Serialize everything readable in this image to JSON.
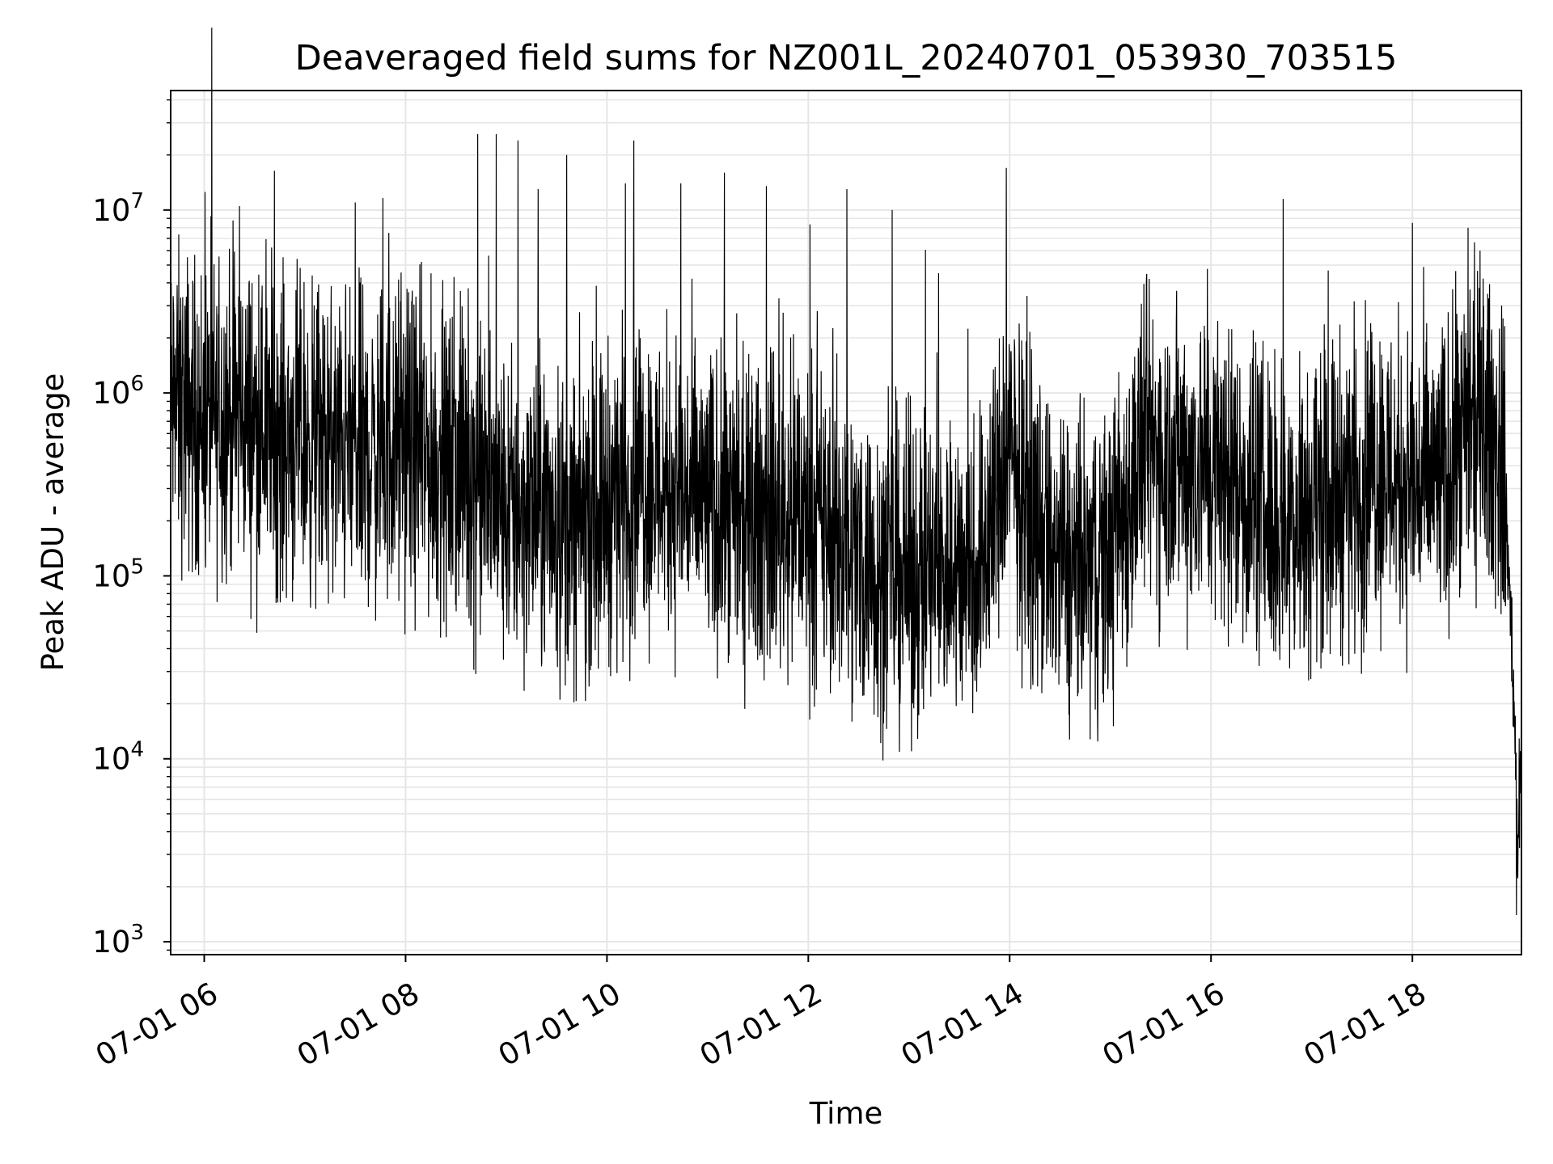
{
  "chart_data": {
    "type": "line",
    "title": "Deaveraged field sums for NZ001L_20240701_053930_703515",
    "xlabel": "Time",
    "ylabel": "Peak ADU - average",
    "xlim": [
      "2024-07-01 05:40",
      "2024-07-01 19:05"
    ],
    "ylim": [
      850,
      45000000
    ],
    "yscale": "log",
    "grid": true,
    "xticks": [
      "07-01 06",
      "07-01 08",
      "07-01 10",
      "07-01 12",
      "07-01 14",
      "07-01 16",
      "07-01 18"
    ],
    "yticks": [
      {
        "base": "10",
        "exp": "3"
      },
      {
        "base": "10",
        "exp": "4"
      },
      {
        "base": "10",
        "exp": "5"
      },
      {
        "base": "10",
        "exp": "6"
      },
      {
        "base": "10",
        "exp": "7"
      }
    ],
    "series_color": "#000000",
    "points": [
      [
        "2024-07-01 05:40",
        900000
      ],
      [
        "2024-07-01 06:00",
        700000
      ],
      [
        "2024-07-01 06:20",
        800000
      ],
      [
        "2024-07-01 06:40",
        600000
      ],
      [
        "2024-07-01 07:00",
        550000
      ],
      [
        "2024-07-01 07:20",
        500000
      ],
      [
        "2024-07-01 07:40",
        450000
      ],
      [
        "2024-07-01 08:00",
        550000
      ],
      [
        "2024-07-01 08:20",
        400000
      ],
      [
        "2024-07-01 08:40",
        350000
      ],
      [
        "2024-07-01 09:00",
        220000
      ],
      [
        "2024-07-01 09:20",
        230000
      ],
      [
        "2024-07-01 09:40",
        180000
      ],
      [
        "2024-07-01 10:00",
        250000
      ],
      [
        "2024-07-01 10:20",
        350000
      ],
      [
        "2024-07-01 10:40",
        300000
      ],
      [
        "2024-07-01 11:00",
        250000
      ],
      [
        "2024-07-01 11:20",
        180000
      ],
      [
        "2024-07-01 11:40",
        220000
      ],
      [
        "2024-07-01 12:00",
        200000
      ],
      [
        "2024-07-01 12:20",
        150000
      ],
      [
        "2024-07-01 12:40",
        110000
      ],
      [
        "2024-07-01 13:00",
        100000
      ],
      [
        "2024-07-01 13:20",
        110000
      ],
      [
        "2024-07-01 13:40",
        110000
      ],
      [
        "2024-07-01 14:00",
        450000
      ],
      [
        "2024-07-01 14:20",
        150000
      ],
      [
        "2024-07-01 14:40",
        100000
      ],
      [
        "2024-07-01 15:00",
        130000
      ],
      [
        "2024-07-01 15:20",
        500000
      ],
      [
        "2024-07-01 15:40",
        450000
      ],
      [
        "2024-07-01 16:00",
        400000
      ],
      [
        "2024-07-01 16:20",
        300000
      ],
      [
        "2024-07-01 16:40",
        200000
      ],
      [
        "2024-07-01 17:00",
        250000
      ],
      [
        "2024-07-01 17:20",
        300000
      ],
      [
        "2024-07-01 17:40",
        400000
      ],
      [
        "2024-07-01 18:00",
        300000
      ],
      [
        "2024-07-01 18:20",
        350000
      ],
      [
        "2024-07-01 18:40",
        700000
      ],
      [
        "2024-07-01 18:50",
        500000
      ],
      [
        "2024-07-01 18:55",
        300000
      ],
      [
        "2024-07-01 19:00",
        30000
      ],
      [
        "2024-07-01 19:03",
        3000
      ],
      [
        "2024-07-01 19:05",
        15000
      ]
    ],
    "spikes": [
      [
        "2024-07-01 06:21",
        10500000
      ],
      [
        "2024-07-01 07:30",
        11000000
      ],
      [
        "2024-07-01 07:50",
        7500000
      ],
      [
        "2024-07-01 08:43",
        26000000
      ],
      [
        "2024-07-01 08:54",
        26000000
      ],
      [
        "2024-07-01 09:07",
        24000000
      ],
      [
        "2024-07-01 09:19",
        13000000
      ],
      [
        "2024-07-01 09:36",
        20000000
      ],
      [
        "2024-07-01 10:11",
        14000000
      ],
      [
        "2024-07-01 10:16",
        24000000
      ],
      [
        "2024-07-01 10:44",
        14000000
      ],
      [
        "2024-07-01 11:10",
        16000000
      ],
      [
        "2024-07-01 11:35",
        13500000
      ],
      [
        "2024-07-01 12:23",
        13000000
      ],
      [
        "2024-07-01 12:50",
        10000000
      ],
      [
        "2024-07-01 13:58",
        17000000
      ],
      [
        "2024-07-01 16:43",
        11500000
      ],
      [
        "2024-07-01 18:00",
        8500000
      ]
    ],
    "dips": [
      [
        "2024-07-01 09:21",
        32000
      ],
      [
        "2024-07-01 12:51",
        40000
      ],
      [
        "2024-07-01 14:26",
        40000
      ],
      [
        "2024-07-01 16:53",
        40000
      ],
      [
        "2024-07-01 17:31",
        38000
      ],
      [
        "2024-07-01 19:02",
        1400
      ]
    ]
  }
}
